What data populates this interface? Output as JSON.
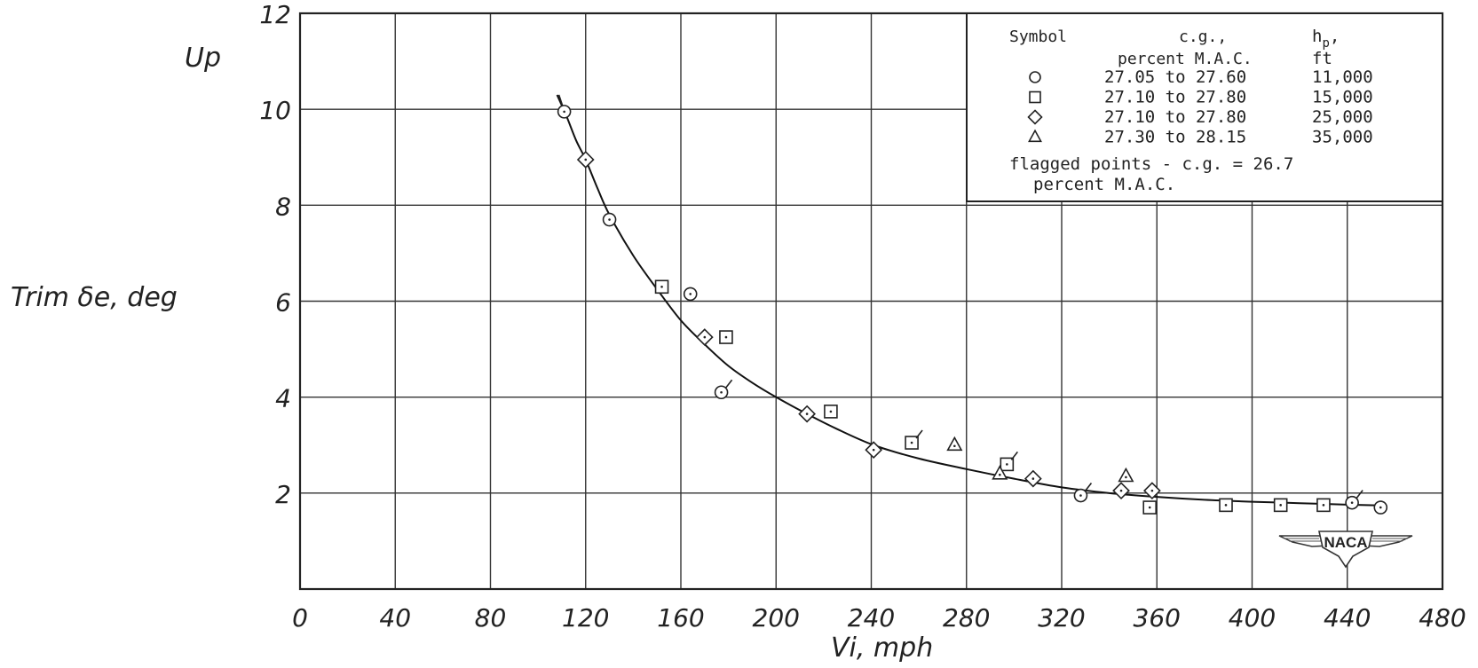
{
  "chart_data": {
    "type": "scatter",
    "title": "",
    "xlabel": "Vi, mph",
    "ylabel": "Trim δe, deg",
    "y_direction_label": "Up",
    "xlim": [
      0,
      480
    ],
    "ylim": [
      0,
      12
    ],
    "x_ticks": [
      "0",
      "40",
      "80",
      "120",
      "160",
      "200",
      "240",
      "280",
      "320",
      "360",
      "400",
      "440",
      "480"
    ],
    "y_ticks": [
      "2",
      "4",
      "6",
      "8",
      "10",
      "12"
    ],
    "grid": true,
    "legend_position": "top-right",
    "legend": {
      "headers": [
        "Symbol",
        "c.g., percent M.A.C.",
        "hp, ft"
      ],
      "header_symbol": "Symbol",
      "header_cg": "c.g.,",
      "header_cg_2": "percent M.A.C.",
      "header_hp": "h",
      "header_hp_sub": "p",
      "header_hp_comma": ",",
      "header_hp_2": "ft",
      "entries": [
        {
          "symbol": "circle",
          "cg_range": "27.05 to 27.60",
          "altitude": "11,000"
        },
        {
          "symbol": "square",
          "cg_range": "27.10 to 27.80",
          "altitude": "15,000"
        },
        {
          "symbol": "diamond",
          "cg_range": "27.10 to 27.80",
          "altitude": "25,000"
        },
        {
          "symbol": "triangle",
          "cg_range": "27.30 to 28.15",
          "altitude": "35,000"
        }
      ],
      "note_line_1": "flagged points - c.g. = 26.7",
      "note_line_2": "percent M.A.C."
    },
    "series": [
      {
        "name": "11,000",
        "symbol": "circle",
        "points": [
          {
            "x": 111,
            "y": 9.95,
            "flagged": true
          },
          {
            "x": 130,
            "y": 7.7,
            "flagged": false
          },
          {
            "x": 164,
            "y": 6.15,
            "flagged": false
          },
          {
            "x": 177,
            "y": 4.1,
            "flagged": true
          },
          {
            "x": 328,
            "y": 1.95,
            "flagged": true
          },
          {
            "x": 442,
            "y": 1.8,
            "flagged": true
          },
          {
            "x": 454,
            "y": 1.7,
            "flagged": false
          }
        ]
      },
      {
        "name": "15,000",
        "symbol": "square",
        "points": [
          {
            "x": 152,
            "y": 6.3,
            "flagged": false
          },
          {
            "x": 179,
            "y": 5.25,
            "flagged": false
          },
          {
            "x": 223,
            "y": 3.7,
            "flagged": false
          },
          {
            "x": 257,
            "y": 3.05,
            "flagged": true
          },
          {
            "x": 297,
            "y": 2.6,
            "flagged": true
          },
          {
            "x": 357,
            "y": 1.7,
            "flagged": false
          },
          {
            "x": 389,
            "y": 1.75,
            "flagged": false
          },
          {
            "x": 412,
            "y": 1.75,
            "flagged": false
          },
          {
            "x": 430,
            "y": 1.75,
            "flagged": false
          }
        ]
      },
      {
        "name": "25,000",
        "symbol": "diamond",
        "points": [
          {
            "x": 120,
            "y": 8.95,
            "flagged": false
          },
          {
            "x": 170,
            "y": 5.25,
            "flagged": false
          },
          {
            "x": 213,
            "y": 3.65,
            "flagged": false
          },
          {
            "x": 241,
            "y": 2.9,
            "flagged": false
          },
          {
            "x": 308,
            "y": 2.3,
            "flagged": false
          },
          {
            "x": 345,
            "y": 2.05,
            "flagged": false
          },
          {
            "x": 358,
            "y": 2.05,
            "flagged": false
          }
        ]
      },
      {
        "name": "35,000",
        "symbol": "triangle",
        "points": [
          {
            "x": 275,
            "y": 3.0,
            "flagged": false
          },
          {
            "x": 294,
            "y": 2.4,
            "flagged": false
          },
          {
            "x": 347,
            "y": 2.35,
            "flagged": false
          }
        ]
      }
    ],
    "fit_curve": [
      [
        108,
        10.3
      ],
      [
        112,
        9.85
      ],
      [
        116,
        9.35
      ],
      [
        120,
        8.95
      ],
      [
        125,
        8.35
      ],
      [
        130,
        7.8
      ],
      [
        140,
        6.95
      ],
      [
        150,
        6.25
      ],
      [
        160,
        5.6
      ],
      [
        170,
        5.1
      ],
      [
        180,
        4.65
      ],
      [
        190,
        4.3
      ],
      [
        200,
        4.0
      ],
      [
        213,
        3.65
      ],
      [
        225,
        3.35
      ],
      [
        241,
        3.0
      ],
      [
        260,
        2.72
      ],
      [
        280,
        2.5
      ],
      [
        300,
        2.3
      ],
      [
        320,
        2.12
      ],
      [
        340,
        2.0
      ],
      [
        360,
        1.92
      ],
      [
        380,
        1.86
      ],
      [
        400,
        1.82
      ],
      [
        420,
        1.79
      ],
      [
        440,
        1.76
      ],
      [
        456,
        1.74
      ]
    ],
    "watermark": "NACA"
  }
}
